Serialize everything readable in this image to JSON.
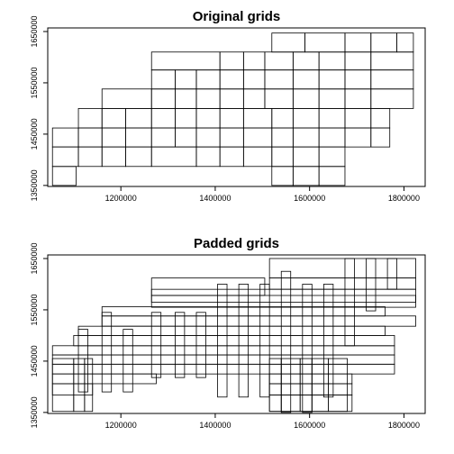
{
  "chart_data": [
    {
      "type": "grid-rectangles",
      "title": "Original grids",
      "xlim": [
        1045000,
        1845000
      ],
      "ylim": [
        1348000,
        1657000
      ],
      "xticks": [
        1200000,
        1400000,
        1600000,
        1800000
      ],
      "yticks": [
        1350000,
        1450000,
        1550000,
        1650000
      ],
      "rows": [
        {
          "y0": 1610000,
          "y1": 1647000,
          "x": [
            1520000,
            1590000,
            1675000,
            1730000,
            1785000,
            1820000
          ]
        },
        {
          "y0": 1575000,
          "y1": 1610000,
          "x": [
            1265000,
            1410000,
            1460000,
            1505000,
            1565000,
            1620000,
            1675000,
            1730000,
            1820000
          ]
        },
        {
          "y0": 1538000,
          "y1": 1575000,
          "x": [
            1265000,
            1315000,
            1360000,
            1410000,
            1460000,
            1505000,
            1565000,
            1620000,
            1675000,
            1730000,
            1820000
          ]
        },
        {
          "y0": 1500000,
          "y1": 1538000,
          "x": [
            1160000,
            1265000,
            1315000,
            1360000,
            1410000,
            1460000,
            1505000,
            1565000,
            1620000,
            1675000,
            1730000,
            1820000
          ]
        },
        {
          "y0": 1462000,
          "y1": 1500000,
          "x": [
            1110000,
            1160000,
            1210000,
            1265000,
            1315000,
            1360000,
            1410000,
            1460000,
            1520000,
            1565000,
            1620000,
            1675000,
            1730000,
            1770000
          ]
        },
        {
          "y0": 1425000,
          "y1": 1462000,
          "x": [
            1055000,
            1110000,
            1160000,
            1210000,
            1265000,
            1315000,
            1360000,
            1410000,
            1460000,
            1520000,
            1565000,
            1620000,
            1675000,
            1730000,
            1770000
          ]
        },
        {
          "y0": 1387000,
          "y1": 1425000,
          "x": [
            1055000,
            1110000,
            1160000,
            1210000,
            1265000,
            1360000,
            1410000,
            1460000,
            1520000,
            1565000,
            1620000,
            1675000
          ]
        },
        {
          "y0": 1350000,
          "y1": 1387000,
          "x": [
            1055000,
            1105000
          ]
        },
        {
          "y0": 1350000,
          "y1": 1387000,
          "x": [
            1520000,
            1565000,
            1620000,
            1675000
          ]
        }
      ]
    },
    {
      "type": "grid-rectangles",
      "title": "Padded grids",
      "xlim": [
        1045000,
        1845000
      ],
      "ylim": [
        1348000,
        1657000
      ],
      "xticks": [
        1200000,
        1400000,
        1600000,
        1800000
      ],
      "yticks": [
        1350000,
        1450000,
        1550000,
        1650000
      ],
      "rows": [
        {
          "y0": 1352000,
          "y1": 1455000,
          "x": [
            1055000,
            1100000,
            1123000,
            1140000
          ]
        },
        {
          "y0": 1352000,
          "y1": 1455000,
          "x": [
            1515000,
            1540000,
            1580000,
            1605000,
            1640000,
            1680000
          ]
        }
      ],
      "rects": [
        {
          "x0": 1265000,
          "x1": 1505000,
          "y0": 1578000,
          "y1": 1612000
        },
        {
          "x0": 1265000,
          "x1": 1825000,
          "y0": 1565000,
          "y1": 1590000
        },
        {
          "x0": 1265000,
          "x1": 1825000,
          "y0": 1555000,
          "y1": 1578000
        },
        {
          "x0": 1515000,
          "x1": 1825000,
          "y0": 1612000,
          "y1": 1650000
        },
        {
          "x0": 1515000,
          "x1": 1825000,
          "y0": 1590000,
          "y1": 1612000
        },
        {
          "x0": 1160000,
          "x1": 1760000,
          "y0": 1538000,
          "y1": 1556000
        },
        {
          "x0": 1160000,
          "x1": 1825000,
          "y0": 1518000,
          "y1": 1538000
        },
        {
          "x0": 1110000,
          "x1": 1760000,
          "y0": 1500000,
          "y1": 1518000
        },
        {
          "x0": 1100000,
          "x1": 1780000,
          "y0": 1480000,
          "y1": 1500000
        },
        {
          "x0": 1055000,
          "x1": 1780000,
          "y0": 1462000,
          "y1": 1480000
        },
        {
          "x0": 1055000,
          "x1": 1780000,
          "y0": 1444000,
          "y1": 1462000
        },
        {
          "x0": 1055000,
          "x1": 1780000,
          "y0": 1425000,
          "y1": 1444000
        },
        {
          "x0": 1055000,
          "x1": 1275000,
          "y0": 1406000,
          "y1": 1425000
        },
        {
          "x0": 1515000,
          "x1": 1690000,
          "y0": 1406000,
          "y1": 1425000
        },
        {
          "x0": 1055000,
          "x1": 1140000,
          "y0": 1384000,
          "y1": 1406000
        },
        {
          "x0": 1515000,
          "x1": 1690000,
          "y0": 1384000,
          "y1": 1406000
        },
        {
          "x0": 1515000,
          "x1": 1690000,
          "y0": 1352000,
          "y1": 1384000
        },
        {
          "x0": 1110000,
          "x1": 1130000,
          "y0": 1390000,
          "y1": 1512000
        },
        {
          "x0": 1160000,
          "x1": 1180000,
          "y0": 1390000,
          "y1": 1545000
        },
        {
          "x0": 1205000,
          "x1": 1225000,
          "y0": 1390000,
          "y1": 1512000
        },
        {
          "x0": 1265000,
          "x1": 1285000,
          "y0": 1418000,
          "y1": 1545000
        },
        {
          "x0": 1315000,
          "x1": 1335000,
          "y0": 1418000,
          "y1": 1545000
        },
        {
          "x0": 1360000,
          "x1": 1380000,
          "y0": 1418000,
          "y1": 1545000
        },
        {
          "x0": 1405000,
          "x1": 1425000,
          "y0": 1380000,
          "y1": 1600000
        },
        {
          "x0": 1450000,
          "x1": 1470000,
          "y0": 1380000,
          "y1": 1600000
        },
        {
          "x0": 1495000,
          "x1": 1515000,
          "y0": 1380000,
          "y1": 1600000
        },
        {
          "x0": 1540000,
          "x1": 1560000,
          "y0": 1350000,
          "y1": 1625000
        },
        {
          "x0": 1585000,
          "x1": 1605000,
          "y0": 1350000,
          "y1": 1600000
        },
        {
          "x0": 1630000,
          "x1": 1650000,
          "y0": 1380000,
          "y1": 1600000
        },
        {
          "x0": 1675000,
          "x1": 1695000,
          "y0": 1480000,
          "y1": 1650000
        },
        {
          "x0": 1720000,
          "x1": 1740000,
          "y0": 1548000,
          "y1": 1650000
        },
        {
          "x0": 1765000,
          "x1": 1785000,
          "y0": 1590000,
          "y1": 1650000
        }
      ]
    }
  ]
}
